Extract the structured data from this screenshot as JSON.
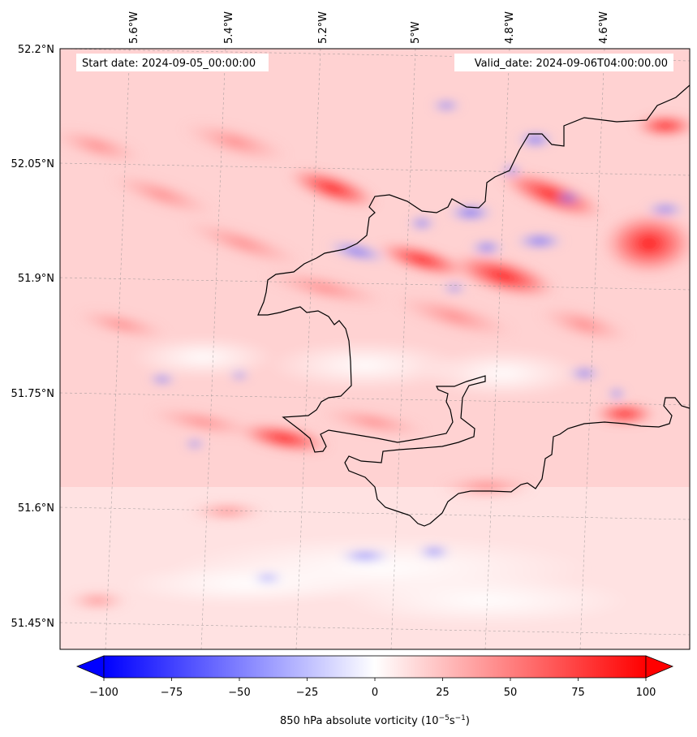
{
  "map": {
    "start_date_label": "Start date: 2024-09-05_00:00:00",
    "valid_date_label": "Valid_date: 2024-09-06T04:00:00.00",
    "lon_ticks": [
      "5.6°W",
      "5.4°W",
      "5.2°W",
      "5°W",
      "4.8°W",
      "4.6°W"
    ],
    "lat_ticks": [
      "52.2°N",
      "52.05°N",
      "51.9°N",
      "51.75°N",
      "51.6°N",
      "51.45°N"
    ]
  },
  "colorbar": {
    "ticks": [
      "−100",
      "−75",
      "−50",
      "−25",
      "0",
      "25",
      "50",
      "75",
      "100"
    ],
    "label_main": "850 hPa absolute vorticity (10",
    "label_exp1": "−5",
    "label_mid": "s",
    "label_exp2": "−1",
    "label_end": ")",
    "min_color": "#0000ff",
    "mid_color": "#ffffff",
    "max_color": "#ff0000"
  }
}
